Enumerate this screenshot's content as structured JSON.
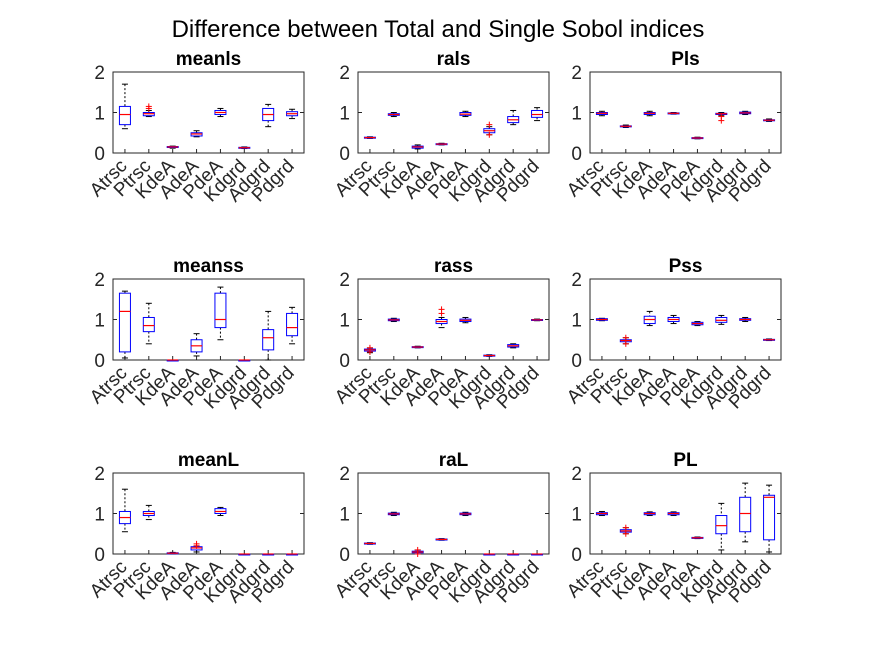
{
  "chart_data": {
    "type": "box",
    "title": "Difference between Total and Single Sobol indices",
    "categories": [
      "Atrsc",
      "Ptrsc",
      "KdeA",
      "AdeA",
      "PdeA",
      "Kdgrd",
      "Adgrd",
      "Pdgrd"
    ],
    "ylim": [
      0,
      2
    ],
    "yticks": [
      0,
      1,
      2
    ],
    "colors": {
      "box": "#0000ff",
      "median": "#ff0000",
      "outlier": "#ff0000",
      "whisker": "#000000",
      "axis": "#262626"
    },
    "panels": [
      {
        "title": "meanls",
        "boxes": [
          {
            "lw": 0.6,
            "q1": 0.7,
            "med": 0.95,
            "q3": 1.15,
            "uw": 1.7,
            "out": []
          },
          {
            "lw": 0.9,
            "q1": 0.92,
            "med": 0.97,
            "q3": 1.0,
            "uw": 1.05,
            "out": [
              1.1,
              1.15
            ]
          },
          {
            "lw": 0.12,
            "q1": 0.14,
            "med": 0.15,
            "q3": 0.16,
            "uw": 0.17,
            "out": []
          },
          {
            "lw": 0.4,
            "q1": 0.42,
            "med": 0.47,
            "q3": 0.5,
            "uw": 0.55,
            "out": []
          },
          {
            "lw": 0.9,
            "q1": 0.95,
            "med": 1.0,
            "q3": 1.05,
            "uw": 1.1,
            "out": []
          },
          {
            "lw": 0.11,
            "q1": 0.12,
            "med": 0.13,
            "q3": 0.14,
            "uw": 0.15,
            "out": []
          },
          {
            "lw": 0.65,
            "q1": 0.8,
            "med": 0.95,
            "q3": 1.1,
            "uw": 1.2,
            "out": []
          },
          {
            "lw": 0.85,
            "q1": 0.92,
            "med": 0.97,
            "q3": 1.02,
            "uw": 1.08,
            "out": []
          }
        ]
      },
      {
        "title": "rals",
        "boxes": [
          {
            "lw": 0.36,
            "q1": 0.37,
            "med": 0.38,
            "q3": 0.39,
            "uw": 0.4,
            "out": []
          },
          {
            "lw": 0.9,
            "q1": 0.93,
            "med": 0.95,
            "q3": 0.97,
            "uw": 1.0,
            "out": []
          },
          {
            "lw": 0.1,
            "q1": 0.12,
            "med": 0.15,
            "q3": 0.17,
            "uw": 0.2,
            "out": []
          },
          {
            "lw": 0.2,
            "q1": 0.21,
            "med": 0.22,
            "q3": 0.23,
            "uw": 0.24,
            "out": []
          },
          {
            "lw": 0.9,
            "q1": 0.93,
            "med": 0.96,
            "q3": 1.0,
            "uw": 1.03,
            "out": []
          },
          {
            "lw": 0.45,
            "q1": 0.5,
            "med": 0.55,
            "q3": 0.6,
            "uw": 0.65,
            "out": [
              0.45,
              0.7
            ]
          },
          {
            "lw": 0.7,
            "q1": 0.75,
            "med": 0.82,
            "q3": 0.9,
            "uw": 1.05,
            "out": []
          },
          {
            "lw": 0.8,
            "q1": 0.88,
            "med": 0.95,
            "q3": 1.05,
            "uw": 1.12,
            "out": []
          }
        ]
      },
      {
        "title": "Pls",
        "boxes": [
          {
            "lw": 0.92,
            "q1": 0.95,
            "med": 0.98,
            "q3": 1.0,
            "uw": 1.03,
            "out": []
          },
          {
            "lw": 0.63,
            "q1": 0.65,
            "med": 0.66,
            "q3": 0.67,
            "uw": 0.69,
            "out": []
          },
          {
            "lw": 0.92,
            "q1": 0.95,
            "med": 0.98,
            "q3": 1.0,
            "uw": 1.03,
            "out": []
          },
          {
            "lw": 0.96,
            "q1": 0.97,
            "med": 0.98,
            "q3": 0.99,
            "uw": 1.0,
            "out": []
          },
          {
            "lw": 0.35,
            "q1": 0.36,
            "med": 0.37,
            "q3": 0.38,
            "uw": 0.39,
            "out": []
          },
          {
            "lw": 0.92,
            "q1": 0.95,
            "med": 0.97,
            "q3": 0.98,
            "uw": 1.0,
            "out": [
              0.8,
              0.9
            ]
          },
          {
            "lw": 0.95,
            "q1": 0.97,
            "med": 0.99,
            "q3": 1.01,
            "uw": 1.03,
            "out": []
          },
          {
            "lw": 0.78,
            "q1": 0.8,
            "med": 0.81,
            "q3": 0.82,
            "uw": 0.84,
            "out": []
          }
        ]
      },
      {
        "title": "meanss",
        "boxes": [
          {
            "lw": 0.05,
            "q1": 0.2,
            "med": 1.2,
            "q3": 1.65,
            "uw": 1.7,
            "out": []
          },
          {
            "lw": 0.4,
            "q1": 0.7,
            "med": 0.85,
            "q3": 1.05,
            "uw": 1.4,
            "out": []
          },
          {
            "lw": 0.0,
            "q1": 0.0,
            "med": 0.0,
            "q3": 0.0,
            "uw": 0.0,
            "out": []
          },
          {
            "lw": 0.1,
            "q1": 0.2,
            "med": 0.35,
            "q3": 0.5,
            "uw": 0.65,
            "out": []
          },
          {
            "lw": 0.5,
            "q1": 0.8,
            "med": 1.0,
            "q3": 1.65,
            "uw": 1.8,
            "out": []
          },
          {
            "lw": 0.0,
            "q1": 0.0,
            "med": 0.0,
            "q3": 0.0,
            "uw": 0.0,
            "out": []
          },
          {
            "lw": 0.0,
            "q1": 0.25,
            "med": 0.55,
            "q3": 0.75,
            "uw": 1.2,
            "out": []
          },
          {
            "lw": 0.4,
            "q1": 0.6,
            "med": 0.8,
            "q3": 1.15,
            "uw": 1.3,
            "out": []
          }
        ]
      },
      {
        "title": "rass",
        "boxes": [
          {
            "lw": 0.18,
            "q1": 0.22,
            "med": 0.25,
            "q3": 0.27,
            "uw": 0.3,
            "out": [
              0.2,
              0.3
            ]
          },
          {
            "lw": 0.95,
            "q1": 0.97,
            "med": 0.99,
            "q3": 1.01,
            "uw": 1.03,
            "out": []
          },
          {
            "lw": 0.3,
            "q1": 0.31,
            "med": 0.32,
            "q3": 0.33,
            "uw": 0.34,
            "out": []
          },
          {
            "lw": 0.8,
            "q1": 0.9,
            "med": 0.95,
            "q3": 1.0,
            "uw": 1.05,
            "out": [
              1.15,
              1.25
            ]
          },
          {
            "lw": 0.92,
            "q1": 0.95,
            "med": 0.98,
            "q3": 1.01,
            "uw": 1.05,
            "out": []
          },
          {
            "lw": 0.09,
            "q1": 0.1,
            "med": 0.11,
            "q3": 0.12,
            "uw": 0.13,
            "out": []
          },
          {
            "lw": 0.3,
            "q1": 0.32,
            "med": 0.35,
            "q3": 0.38,
            "uw": 0.4,
            "out": []
          },
          {
            "lw": 0.97,
            "q1": 0.98,
            "med": 0.99,
            "q3": 1.0,
            "uw": 1.01,
            "out": []
          }
        ]
      },
      {
        "title": "Pss",
        "boxes": [
          {
            "lw": 0.97,
            "q1": 0.98,
            "med": 1.0,
            "q3": 1.02,
            "uw": 1.03,
            "out": []
          },
          {
            "lw": 0.4,
            "q1": 0.45,
            "med": 0.48,
            "q3": 0.5,
            "uw": 0.55,
            "out": [
              0.4,
              0.55
            ]
          },
          {
            "lw": 0.85,
            "q1": 0.9,
            "med": 1.0,
            "q3": 1.08,
            "uw": 1.2,
            "out": []
          },
          {
            "lw": 0.9,
            "q1": 0.95,
            "med": 1.0,
            "q3": 1.05,
            "uw": 1.1,
            "out": []
          },
          {
            "lw": 0.85,
            "q1": 0.87,
            "med": 0.9,
            "q3": 0.93,
            "uw": 0.95,
            "out": []
          },
          {
            "lw": 0.88,
            "q1": 0.93,
            "med": 0.98,
            "q3": 1.05,
            "uw": 1.1,
            "out": []
          },
          {
            "lw": 0.95,
            "q1": 0.98,
            "med": 1.0,
            "q3": 1.02,
            "uw": 1.05,
            "out": []
          },
          {
            "lw": 0.48,
            "q1": 0.49,
            "med": 0.5,
            "q3": 0.51,
            "uw": 0.52,
            "out": []
          }
        ]
      },
      {
        "title": "meanL",
        "boxes": [
          {
            "lw": 0.55,
            "q1": 0.75,
            "med": 0.9,
            "q3": 1.05,
            "uw": 1.6,
            "out": []
          },
          {
            "lw": 0.85,
            "q1": 0.95,
            "med": 1.0,
            "q3": 1.05,
            "uw": 1.2,
            "out": []
          },
          {
            "lw": 0.0,
            "q1": 0.01,
            "med": 0.02,
            "q3": 0.03,
            "uw": 0.04,
            "out": []
          },
          {
            "lw": 0.05,
            "q1": 0.1,
            "med": 0.15,
            "q3": 0.18,
            "uw": 0.2,
            "out": [
              0.2,
              0.25
            ]
          },
          {
            "lw": 0.95,
            "q1": 1.0,
            "med": 1.05,
            "q3": 1.12,
            "uw": 1.15,
            "out": []
          },
          {
            "lw": 0.0,
            "q1": 0.0,
            "med": 0.0,
            "q3": 0.0,
            "uw": 0.0,
            "out": []
          },
          {
            "lw": 0.0,
            "q1": 0.0,
            "med": 0.0,
            "q3": 0.0,
            "uw": 0.0,
            "out": []
          },
          {
            "lw": 0.0,
            "q1": 0.0,
            "med": 0.0,
            "q3": 0.0,
            "uw": 0.0,
            "out": []
          }
        ]
      },
      {
        "title": "raL",
        "boxes": [
          {
            "lw": 0.24,
            "q1": 0.25,
            "med": 0.26,
            "q3": 0.27,
            "uw": 0.28,
            "out": []
          },
          {
            "lw": 0.95,
            "q1": 0.97,
            "med": 0.99,
            "q3": 1.01,
            "uw": 1.03,
            "out": []
          },
          {
            "lw": 0.0,
            "q1": 0.03,
            "med": 0.05,
            "q3": 0.07,
            "uw": 0.1,
            "out": [
              0.0,
              0.1
            ]
          },
          {
            "lw": 0.34,
            "q1": 0.35,
            "med": 0.36,
            "q3": 0.37,
            "uw": 0.38,
            "out": []
          },
          {
            "lw": 0.95,
            "q1": 0.97,
            "med": 0.99,
            "q3": 1.01,
            "uw": 1.03,
            "out": []
          },
          {
            "lw": 0.0,
            "q1": 0.0,
            "med": 0.0,
            "q3": 0.0,
            "uw": 0.0,
            "out": []
          },
          {
            "lw": 0.0,
            "q1": 0.0,
            "med": 0.0,
            "q3": 0.0,
            "uw": 0.0,
            "out": []
          },
          {
            "lw": 0.0,
            "q1": 0.0,
            "med": 0.0,
            "q3": 0.0,
            "uw": 0.0,
            "out": []
          }
        ]
      },
      {
        "title": "PL",
        "boxes": [
          {
            "lw": 0.95,
            "q1": 0.97,
            "med": 1.0,
            "q3": 1.02,
            "uw": 1.05,
            "out": []
          },
          {
            "lw": 0.5,
            "q1": 0.54,
            "med": 0.57,
            "q3": 0.6,
            "uw": 0.65,
            "out": [
              0.5,
              0.65
            ]
          },
          {
            "lw": 0.95,
            "q1": 0.97,
            "med": 1.0,
            "q3": 1.02,
            "uw": 1.04,
            "out": []
          },
          {
            "lw": 0.95,
            "q1": 0.97,
            "med": 1.0,
            "q3": 1.02,
            "uw": 1.04,
            "out": []
          },
          {
            "lw": 0.38,
            "q1": 0.39,
            "med": 0.4,
            "q3": 0.41,
            "uw": 0.42,
            "out": []
          },
          {
            "lw": 0.1,
            "q1": 0.5,
            "med": 0.7,
            "q3": 0.95,
            "uw": 1.25,
            "out": []
          },
          {
            "lw": 0.3,
            "q1": 0.55,
            "med": 1.0,
            "q3": 1.4,
            "uw": 1.75,
            "out": []
          },
          {
            "lw": 0.05,
            "q1": 0.35,
            "med": 1.4,
            "q3": 1.45,
            "uw": 1.7,
            "out": []
          }
        ]
      }
    ]
  }
}
